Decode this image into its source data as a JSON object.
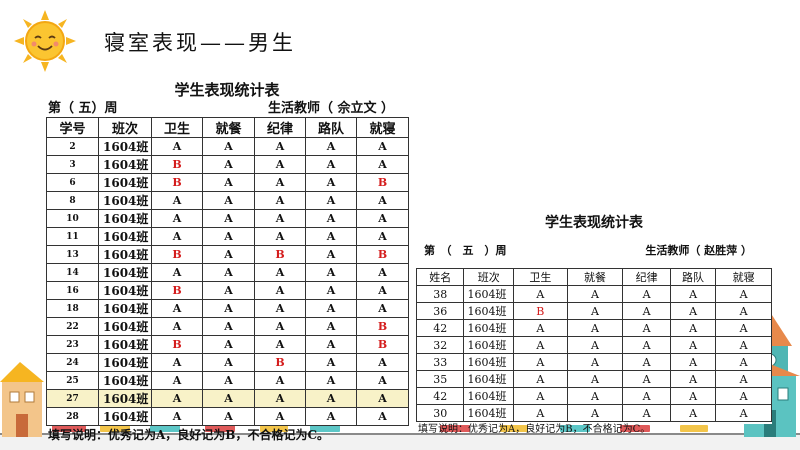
{
  "header": {
    "title": "寝室表现——男生",
    "sun_icon": "smiling-sun-icon"
  },
  "table_left": {
    "title": "学生表现统计表",
    "week": "第（ 五）周",
    "teacher": "生活教师（ 佘立文 ）",
    "columns": [
      "学号",
      "班次",
      "卫生",
      "就餐",
      "纪律",
      "路队",
      "就寝"
    ],
    "rows": [
      [
        "2",
        "1604班",
        "A",
        "A",
        "A",
        "A",
        "A"
      ],
      [
        "3",
        "1604班",
        "B",
        "A",
        "A",
        "A",
        "A"
      ],
      [
        "6",
        "1604班",
        "B",
        "A",
        "A",
        "A",
        "B"
      ],
      [
        "8",
        "1604班",
        "A",
        "A",
        "A",
        "A",
        "A"
      ],
      [
        "10",
        "1604班",
        "A",
        "A",
        "A",
        "A",
        "A"
      ],
      [
        "11",
        "1604班",
        "A",
        "A",
        "A",
        "A",
        "A"
      ],
      [
        "13",
        "1604班",
        "B",
        "A",
        "B",
        "A",
        "B"
      ],
      [
        "14",
        "1604班",
        "A",
        "A",
        "A",
        "A",
        "A"
      ],
      [
        "16",
        "1604班",
        "B",
        "A",
        "A",
        "A",
        "A"
      ],
      [
        "18",
        "1604班",
        "A",
        "A",
        "A",
        "A",
        "A"
      ],
      [
        "22",
        "1604班",
        "A",
        "A",
        "A",
        "A",
        "B"
      ],
      [
        "23",
        "1604班",
        "B",
        "A",
        "A",
        "A",
        "B"
      ],
      [
        "24",
        "1604班",
        "A",
        "A",
        "B",
        "A",
        "A"
      ],
      [
        "25",
        "1604班",
        "A",
        "A",
        "A",
        "A",
        "A"
      ],
      [
        "27",
        "1604班",
        "A",
        "A",
        "A",
        "A",
        "A"
      ],
      [
        "28",
        "1604班",
        "A",
        "A",
        "A",
        "A",
        "A"
      ]
    ],
    "note": "填写说明：优秀记为A，良好记为B，不合格记为C。"
  },
  "table_right": {
    "title": "学生表现统计表",
    "week": "第　（　五　）周",
    "teacher": "生活教师（ 赵胜萍 ）",
    "columns": [
      "姓名",
      "班次",
      "卫生",
      "就餐",
      "纪律",
      "路队",
      "就寝"
    ],
    "rows": [
      [
        "38",
        "1604班",
        "A",
        "A",
        "A",
        "A",
        "A"
      ],
      [
        "36",
        "1604班",
        "B",
        "A",
        "A",
        "A",
        "A"
      ],
      [
        "42",
        "1604班",
        "A",
        "A",
        "A",
        "A",
        "A"
      ],
      [
        "32",
        "1604班",
        "A",
        "A",
        "A",
        "A",
        "A"
      ],
      [
        "33",
        "1604班",
        "A",
        "A",
        "A",
        "A",
        "A"
      ],
      [
        "35",
        "1604班",
        "A",
        "A",
        "A",
        "A",
        "A"
      ],
      [
        "42",
        "1604班",
        "A",
        "A",
        "A",
        "A",
        "A"
      ],
      [
        "30",
        "1604班",
        "A",
        "A",
        "A",
        "A",
        "A"
      ]
    ],
    "note": "填写说明：优秀记为A，良好记为B，不合格记为C。"
  },
  "colors": {
    "grade_b": "#d41c1c",
    "highlight_row": "#f8f2c8"
  }
}
